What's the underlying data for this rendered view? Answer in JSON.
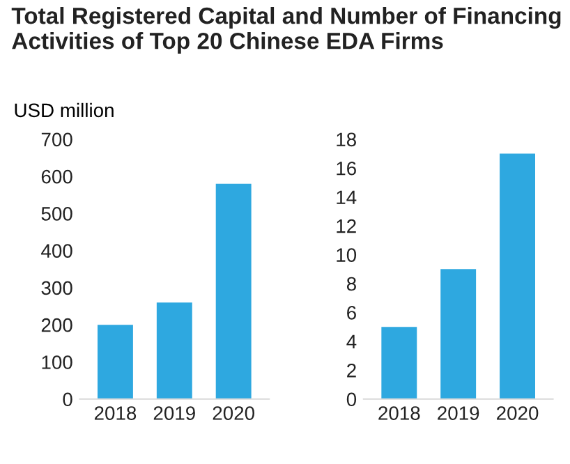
{
  "chart_data": [
    {
      "type": "bar",
      "title": "Total Registered Capital and Number of Financing\nActivities of Top 20 Chinese EDA Firms",
      "ylabel": "USD million",
      "categories": [
        "2018",
        "2019",
        "2020"
      ],
      "values": [
        200,
        260,
        580
      ],
      "color": "#2ea8e0",
      "ylim": [
        0,
        700
      ],
      "yticks": [
        0,
        100,
        200,
        300,
        400,
        500,
        600,
        700
      ],
      "grid": false
    },
    {
      "type": "bar",
      "categories": [
        "2018",
        "2019",
        "2020"
      ],
      "values": [
        5,
        9,
        17
      ],
      "color": "#2ea8e0",
      "ylim": [
        0,
        18
      ],
      "yticks": [
        0,
        2,
        4,
        6,
        8,
        10,
        12,
        14,
        16,
        18
      ],
      "grid": false
    }
  ]
}
